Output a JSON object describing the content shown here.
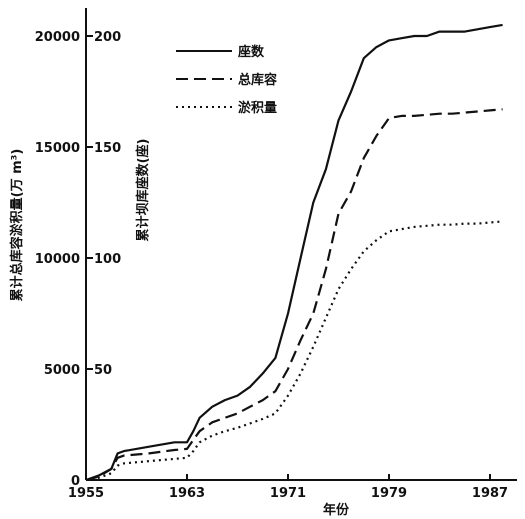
{
  "chart_data": {
    "type": "line",
    "xlabel": "年份",
    "ylabel_left": "累计总库容淤积量(万 m³)",
    "ylabel_right": "累计坝库座数(座)",
    "xlim": [
      1955,
      1989
    ],
    "ylim_left": [
      0,
      21000
    ],
    "ylim_right": [
      0,
      210
    ],
    "x_ticks": [
      1955,
      1963,
      1971,
      1979,
      1987
    ],
    "y_ticks_left": [
      0,
      5000,
      10000,
      15000,
      20000
    ],
    "y_ticks_right": [
      50,
      100,
      150,
      200
    ],
    "legend_position": "top-center",
    "series": [
      {
        "name": "座数",
        "style": "solid",
        "axis": "right",
        "x": [
          1955,
          1956,
          1957,
          1957.5,
          1958,
          1960,
          1962,
          1963,
          1963.5,
          1964,
          1965,
          1966,
          1967,
          1968,
          1969,
          1970,
          1971,
          1972,
          1973,
          1974,
          1975,
          1976,
          1977,
          1978,
          1979,
          1980,
          1981,
          1982,
          1983,
          1984,
          1985,
          1986,
          1987,
          1988
        ],
        "values": [
          0,
          2,
          5,
          12,
          13,
          15,
          17,
          17,
          22,
          28,
          33,
          36,
          38,
          42,
          48,
          55,
          75,
          100,
          125,
          140,
          162,
          175,
          190,
          195,
          198,
          199,
          200,
          200,
          202,
          202,
          202,
          203,
          204,
          205
        ]
      },
      {
        "name": "总库容",
        "style": "dashed",
        "axis": "left",
        "x": [
          1955,
          1956,
          1957,
          1957.5,
          1958,
          1960,
          1962,
          1963,
          1963.5,
          1964,
          1965,
          1966,
          1967,
          1968,
          1969,
          1970,
          1971,
          1972,
          1973,
          1974,
          1975,
          1976,
          1977,
          1978,
          1979,
          1980,
          1981,
          1982,
          1983,
          1984,
          1985,
          1986,
          1987,
          1988
        ],
        "values": [
          0,
          150,
          500,
          1000,
          1100,
          1200,
          1350,
          1400,
          1800,
          2200,
          2600,
          2800,
          3000,
          3300,
          3600,
          4000,
          5000,
          6300,
          7500,
          9500,
          12000,
          13000,
          14500,
          15500,
          16300,
          16400,
          16400,
          16450,
          16500,
          16500,
          16550,
          16600,
          16650,
          16700
        ]
      },
      {
        "name": "淤积量",
        "style": "dotted",
        "axis": "left",
        "x": [
          1955,
          1956,
          1957,
          1957.5,
          1958,
          1960,
          1962,
          1963,
          1963.5,
          1964,
          1965,
          1966,
          1967,
          1968,
          1969,
          1970,
          1971,
          1972,
          1973,
          1974,
          1975,
          1976,
          1977,
          1978,
          1979,
          1980,
          1981,
          1982,
          1983,
          1984,
          1985,
          1986,
          1987,
          1988
        ],
        "values": [
          0,
          100,
          300,
          650,
          750,
          850,
          950,
          1000,
          1300,
          1700,
          2000,
          2200,
          2350,
          2550,
          2750,
          3000,
          3800,
          4800,
          6000,
          7300,
          8600,
          9500,
          10300,
          10800,
          11200,
          11300,
          11400,
          11450,
          11500,
          11500,
          11550,
          11550,
          11600,
          11650
        ]
      }
    ]
  }
}
